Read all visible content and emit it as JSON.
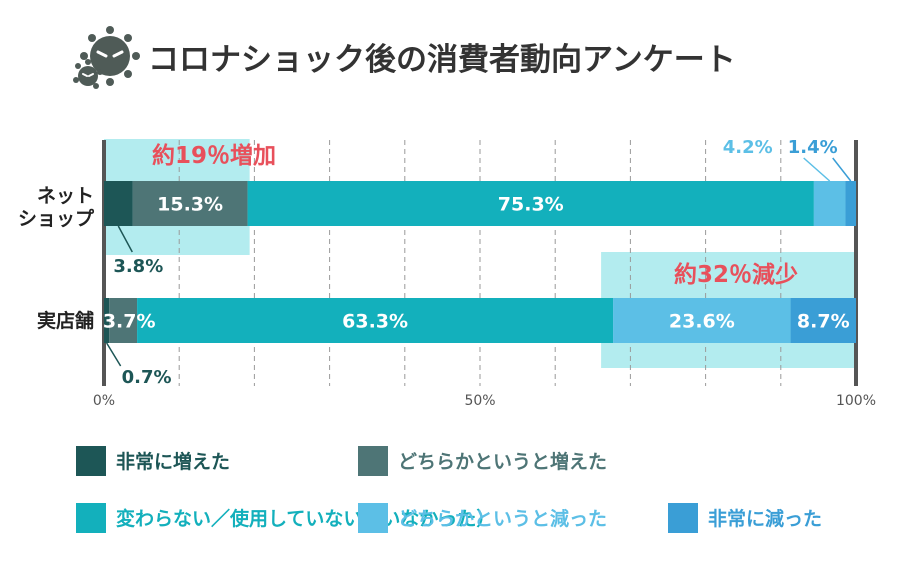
{
  "chart_data": {
    "type": "bar",
    "orientation": "horizontal",
    "stacked": true,
    "title": "コロナショック後の消費者動向アンケート",
    "categories": [
      "ネット\nショップ",
      "実店舗"
    ],
    "xlim": [
      0,
      100
    ],
    "xticks": [
      "0%",
      "50%",
      "100%"
    ],
    "grid": true,
    "legend_position": "bottom",
    "series": [
      {
        "name": "非常に増えた",
        "color": "#1d5656",
        "values": [
          3.8,
          0.7
        ]
      },
      {
        "name": "どちらかというと増えた",
        "color": "#4e7576",
        "values": [
          15.3,
          3.7
        ]
      },
      {
        "name": "変わらない／使用していない（いなかった）",
        "color": "#13b0bc",
        "values": [
          75.3,
          63.3
        ]
      },
      {
        "name": "どちらかというと減った",
        "color": "#5cbfe6",
        "values": [
          4.2,
          23.6
        ]
      },
      {
        "name": "非常に減った",
        "color": "#3a9ed6",
        "values": [
          1.4,
          8.7
        ]
      }
    ],
    "data_labels": [
      [
        "3.8%",
        "15.3%",
        "75.3%",
        "4.2%",
        "1.4%"
      ],
      [
        "0.7%",
        "3.7%",
        "63.3%",
        "23.6%",
        "8.7%"
      ]
    ],
    "annotations": [
      {
        "text": "約19％増加",
        "color": "#e8505b"
      },
      {
        "text": "約32％減少",
        "color": "#e8505b"
      }
    ],
    "highlight_color": "#b3ecef"
  }
}
